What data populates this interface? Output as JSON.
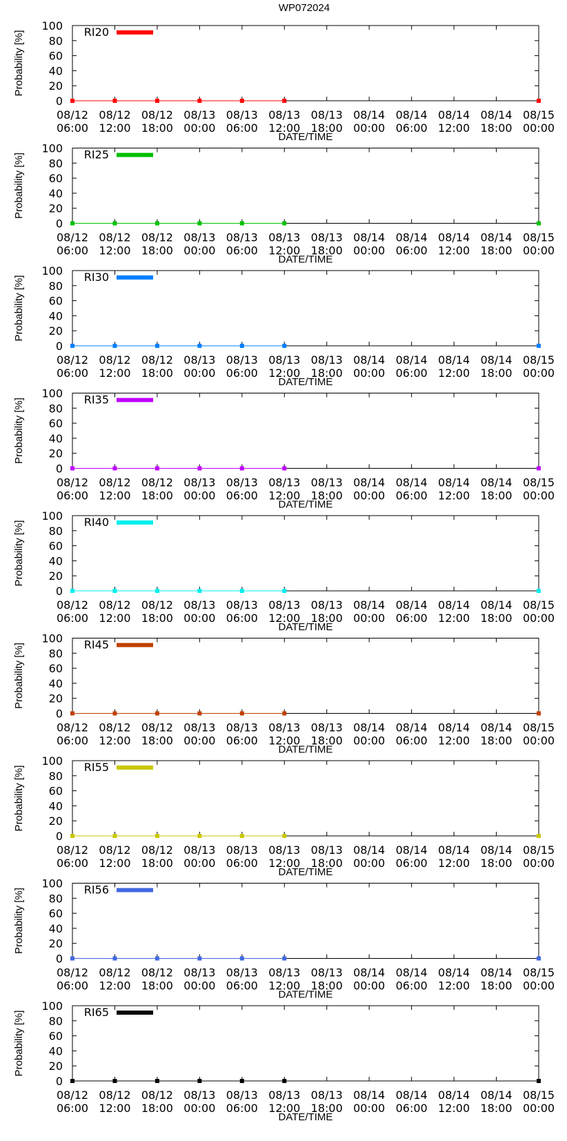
{
  "chart_data": {
    "type": "line",
    "title": "WP072024",
    "xlabel": "DATE/TIME",
    "ylabel": "Probability [%]",
    "ylim": [
      0,
      100
    ],
    "yticks": [
      0,
      20,
      40,
      60,
      80,
      100
    ],
    "xticks": [
      {
        "date": "08/12",
        "time": "06:00"
      },
      {
        "date": "08/12",
        "time": "12:00"
      },
      {
        "date": "08/12",
        "time": "18:00"
      },
      {
        "date": "08/13",
        "time": "00:00"
      },
      {
        "date": "08/13",
        "time": "06:00"
      },
      {
        "date": "08/13",
        "time": "12:00"
      },
      {
        "date": "08/13",
        "time": "18:00"
      },
      {
        "date": "08/14",
        "time": "00:00"
      },
      {
        "date": "08/14",
        "time": "06:00"
      },
      {
        "date": "08/14",
        "time": "12:00"
      },
      {
        "date": "08/14",
        "time": "18:00"
      },
      {
        "date": "08/15",
        "time": "00:00"
      }
    ],
    "x_hours": [
      0,
      6,
      12,
      18,
      24,
      30,
      66
    ],
    "xlim_hours": [
      0,
      66
    ],
    "series": [
      {
        "name": "RI20",
        "color": "#ff0000",
        "values": [
          0,
          0,
          0,
          0,
          0,
          0,
          0
        ]
      },
      {
        "name": "RI25",
        "color": "#00c000",
        "values": [
          0,
          0,
          0,
          0,
          0,
          0,
          0
        ]
      },
      {
        "name": "RI30",
        "color": "#0080ff",
        "values": [
          0,
          0,
          0,
          0,
          0,
          0,
          0
        ]
      },
      {
        "name": "RI35",
        "color": "#c000ff",
        "values": [
          0,
          0,
          0,
          0,
          0,
          0,
          0
        ]
      },
      {
        "name": "RI40",
        "color": "#00eeee",
        "values": [
          0,
          0,
          0,
          0,
          0,
          0,
          0
        ]
      },
      {
        "name": "RI45",
        "color": "#c04000",
        "values": [
          0,
          0,
          0,
          0,
          0,
          0,
          0
        ]
      },
      {
        "name": "RI55",
        "color": "#c8c800",
        "values": [
          0,
          0,
          0,
          0,
          0,
          0,
          0
        ]
      },
      {
        "name": "RI56",
        "color": "#4169e1",
        "values": [
          0,
          0,
          0,
          0,
          0,
          0,
          0
        ]
      },
      {
        "name": "RI65",
        "color": "#000000",
        "values": [
          0,
          0,
          0,
          0,
          0,
          0,
          0
        ]
      }
    ]
  }
}
